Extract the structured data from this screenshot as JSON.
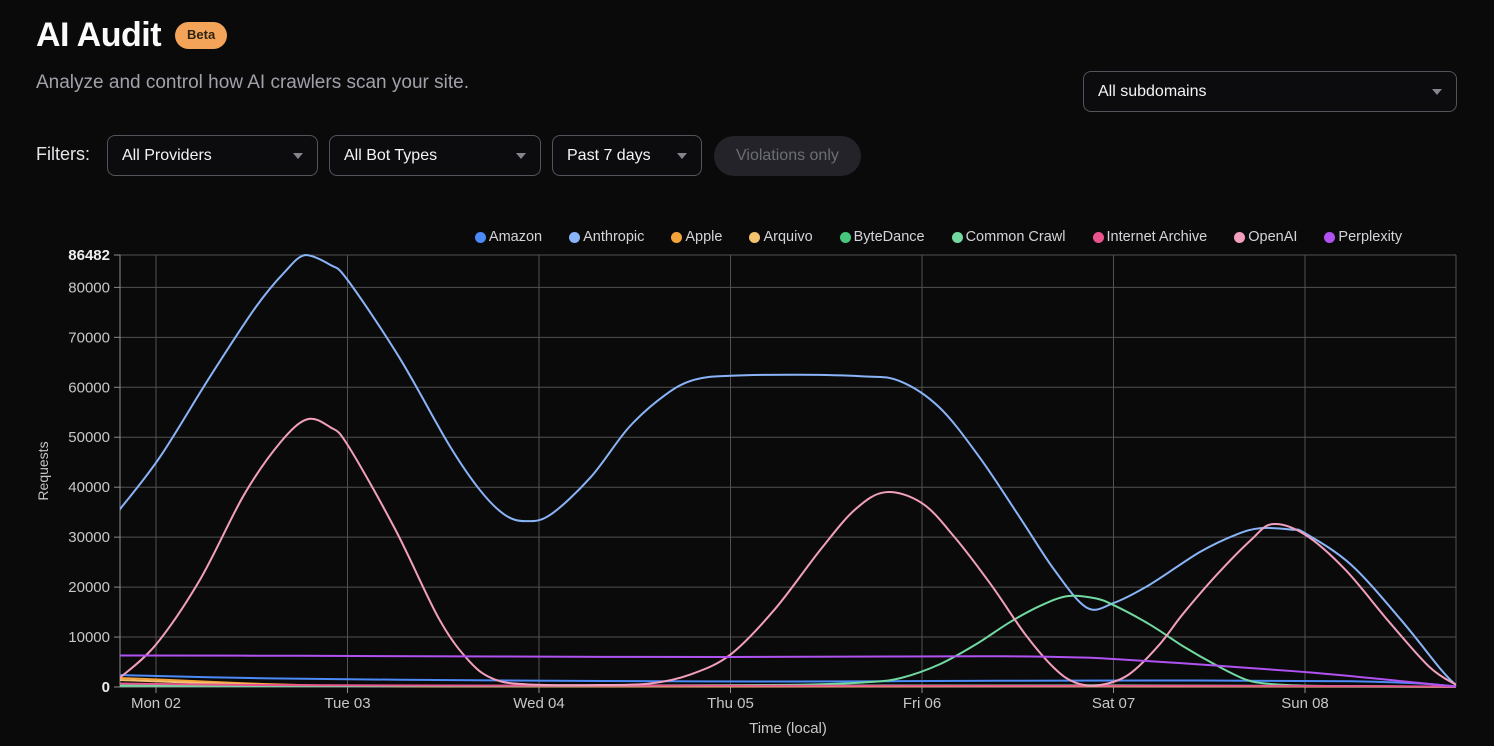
{
  "header": {
    "title": "AI Audit",
    "badge": "Beta",
    "subtitle": "Analyze and control how AI crawlers scan your site."
  },
  "subdomain_select": {
    "value": "All subdomains"
  },
  "filters": {
    "label": "Filters:",
    "providers": "All Providers",
    "bot_types": "All Bot Types",
    "date_range": "Past 7 days",
    "violations_toggle": "Violations only"
  },
  "colors": {
    "background": "#0a0a0b",
    "badge": "#f3a458",
    "grid": "#515151",
    "axis": "#8c8c8c",
    "tick_text": "#c7c7c7",
    "tick_text_bold": "#ededed",
    "legend_text": "#d4d4d8"
  },
  "chart_data": {
    "type": "line",
    "xlabel": "Time (local)",
    "ylabel": "Requests",
    "ylim": [
      0,
      86482
    ],
    "x_domain_days": [
      -0.19,
      6.79
    ],
    "grid": true,
    "legend_position": "top-center",
    "y_ticks": [
      {
        "v": 86482,
        "label": "86482",
        "bold": true
      },
      {
        "v": 80000,
        "label": "80000"
      },
      {
        "v": 70000,
        "label": "70000"
      },
      {
        "v": 60000,
        "label": "60000"
      },
      {
        "v": 50000,
        "label": "50000"
      },
      {
        "v": 40000,
        "label": "40000"
      },
      {
        "v": 30000,
        "label": "30000"
      },
      {
        "v": 20000,
        "label": "20000"
      },
      {
        "v": 10000,
        "label": "10000"
      },
      {
        "v": 0,
        "label": "0",
        "bold": true
      }
    ],
    "x_ticks": [
      {
        "t": 0,
        "label": "Mon 02"
      },
      {
        "t": 1,
        "label": "Tue 03"
      },
      {
        "t": 2,
        "label": "Wed 04"
      },
      {
        "t": 3,
        "label": "Thu 05"
      },
      {
        "t": 4,
        "label": "Fri 06"
      },
      {
        "t": 5,
        "label": "Sat 07"
      },
      {
        "t": 6,
        "label": "Sun 08"
      }
    ],
    "series": [
      {
        "name": "Amazon",
        "color": "#4b8af7",
        "points": [
          [
            -0.19,
            2400
          ],
          [
            0.49,
            1800
          ],
          [
            1.27,
            1450
          ],
          [
            2.32,
            1200
          ],
          [
            3.36,
            1100
          ],
          [
            4.41,
            1250
          ],
          [
            5.45,
            1300
          ],
          [
            6.24,
            1150
          ],
          [
            6.6,
            700
          ],
          [
            6.79,
            100
          ]
        ]
      },
      {
        "name": "Anthropic",
        "color": "#8ab4f8",
        "points": [
          [
            -0.19,
            35500
          ],
          [
            0.02,
            46000
          ],
          [
            0.28,
            62000
          ],
          [
            0.52,
            76000
          ],
          [
            0.67,
            83000
          ],
          [
            0.78,
            86482
          ],
          [
            0.91,
            84500
          ],
          [
            1.0,
            81500
          ],
          [
            1.27,
            66000
          ],
          [
            1.53,
            48500
          ],
          [
            1.69,
            39500
          ],
          [
            1.82,
            34500
          ],
          [
            1.93,
            33200
          ],
          [
            2.06,
            34500
          ],
          [
            2.27,
            42000
          ],
          [
            2.47,
            52000
          ],
          [
            2.66,
            58500
          ],
          [
            2.81,
            61500
          ],
          [
            3.0,
            62300
          ],
          [
            3.36,
            62500
          ],
          [
            3.68,
            62200
          ],
          [
            3.88,
            61300
          ],
          [
            4.09,
            56000
          ],
          [
            4.3,
            46000
          ],
          [
            4.51,
            34000
          ],
          [
            4.69,
            23500
          ],
          [
            4.86,
            15900
          ],
          [
            5.0,
            16800
          ],
          [
            5.19,
            20500
          ],
          [
            5.45,
            27000
          ],
          [
            5.64,
            30500
          ],
          [
            5.77,
            31800
          ],
          [
            5.93,
            31500
          ],
          [
            6.0,
            30800
          ],
          [
            6.24,
            24500
          ],
          [
            6.5,
            13500
          ],
          [
            6.71,
            3500
          ],
          [
            6.79,
            300
          ]
        ]
      },
      {
        "name": "Apple",
        "color": "#f5a33b",
        "points": [
          [
            -0.19,
            1800
          ],
          [
            0.13,
            1300
          ],
          [
            0.49,
            700
          ],
          [
            0.86,
            300
          ],
          [
            1.27,
            180
          ],
          [
            2.32,
            150
          ],
          [
            3.36,
            200
          ],
          [
            4.41,
            280
          ],
          [
            5.45,
            220
          ],
          [
            6.39,
            120
          ],
          [
            6.79,
            40
          ]
        ]
      },
      {
        "name": "Arquivo",
        "color": "#f3c36d",
        "points": [
          [
            -0.19,
            1400
          ],
          [
            0.13,
            950
          ],
          [
            0.49,
            500
          ],
          [
            0.86,
            220
          ],
          [
            1.53,
            120
          ],
          [
            2.84,
            100
          ],
          [
            4.41,
            150
          ],
          [
            5.97,
            100
          ],
          [
            6.79,
            30
          ]
        ]
      },
      {
        "name": "ByteDance",
        "color": "#46c77d",
        "points": [
          [
            -0.19,
            350
          ],
          [
            1.27,
            250
          ],
          [
            3.36,
            300
          ],
          [
            4.93,
            350
          ],
          [
            5.97,
            200
          ],
          [
            6.79,
            40
          ]
        ]
      },
      {
        "name": "Common Crawl",
        "color": "#72d9a0",
        "points": [
          [
            -0.19,
            250
          ],
          [
            0.5,
            200
          ],
          [
            1.5,
            200
          ],
          [
            2.5,
            300
          ],
          [
            3.2,
            400
          ],
          [
            3.47,
            550
          ],
          [
            3.73,
            1000
          ],
          [
            3.89,
            1800
          ],
          [
            4.09,
            4500
          ],
          [
            4.28,
            8500
          ],
          [
            4.46,
            13000
          ],
          [
            4.62,
            16300
          ],
          [
            4.76,
            18200
          ],
          [
            4.9,
            17800
          ],
          [
            5.0,
            16400
          ],
          [
            5.19,
            12500
          ],
          [
            5.37,
            8000
          ],
          [
            5.53,
            4500
          ],
          [
            5.69,
            1500
          ],
          [
            5.82,
            600
          ],
          [
            6.03,
            250
          ],
          [
            6.4,
            150
          ],
          [
            6.79,
            50
          ]
        ]
      },
      {
        "name": "Internet Archive",
        "color": "#e9548f",
        "points": [
          [
            -0.19,
            700
          ],
          [
            0.49,
            400
          ],
          [
            1.8,
            280
          ],
          [
            3.88,
            260
          ],
          [
            5.45,
            250
          ],
          [
            6.5,
            150
          ],
          [
            6.79,
            40
          ]
        ]
      },
      {
        "name": "OpenAI",
        "color": "#f29fbe",
        "points": [
          [
            -0.19,
            1800
          ],
          [
            0.0,
            8500
          ],
          [
            0.23,
            21500
          ],
          [
            0.46,
            38500
          ],
          [
            0.65,
            49000
          ],
          [
            0.79,
            53600
          ],
          [
            0.91,
            52000
          ],
          [
            1.0,
            48500
          ],
          [
            1.25,
            31500
          ],
          [
            1.48,
            13500
          ],
          [
            1.64,
            5000
          ],
          [
            1.77,
            1500
          ],
          [
            1.95,
            500
          ],
          [
            2.32,
            400
          ],
          [
            2.58,
            700
          ],
          [
            2.79,
            2500
          ],
          [
            3.0,
            6500
          ],
          [
            3.23,
            15500
          ],
          [
            3.47,
            27500
          ],
          [
            3.65,
            35500
          ],
          [
            3.81,
            39000
          ],
          [
            4.0,
            36800
          ],
          [
            4.17,
            30000
          ],
          [
            4.36,
            20500
          ],
          [
            4.54,
            10500
          ],
          [
            4.69,
            3800
          ],
          [
            4.8,
            900
          ],
          [
            4.93,
            400
          ],
          [
            5.08,
            2500
          ],
          [
            5.24,
            8500
          ],
          [
            5.36,
            14500
          ],
          [
            5.54,
            22500
          ],
          [
            5.72,
            29500
          ],
          [
            5.83,
            32600
          ],
          [
            6.0,
            30500
          ],
          [
            6.21,
            23500
          ],
          [
            6.44,
            13000
          ],
          [
            6.65,
            4000
          ],
          [
            6.79,
            400
          ]
        ]
      },
      {
        "name": "Perplexity",
        "color": "#b052f0",
        "points": [
          [
            -0.19,
            6300
          ],
          [
            0.75,
            6250
          ],
          [
            1.8,
            6100
          ],
          [
            3.0,
            6000
          ],
          [
            3.88,
            6100
          ],
          [
            4.41,
            6150
          ],
          [
            4.83,
            5900
          ],
          [
            5.0,
            5600
          ],
          [
            5.34,
            4800
          ],
          [
            5.71,
            3800
          ],
          [
            6.03,
            2900
          ],
          [
            6.34,
            1800
          ],
          [
            6.6,
            800
          ],
          [
            6.79,
            100
          ]
        ]
      }
    ]
  }
}
